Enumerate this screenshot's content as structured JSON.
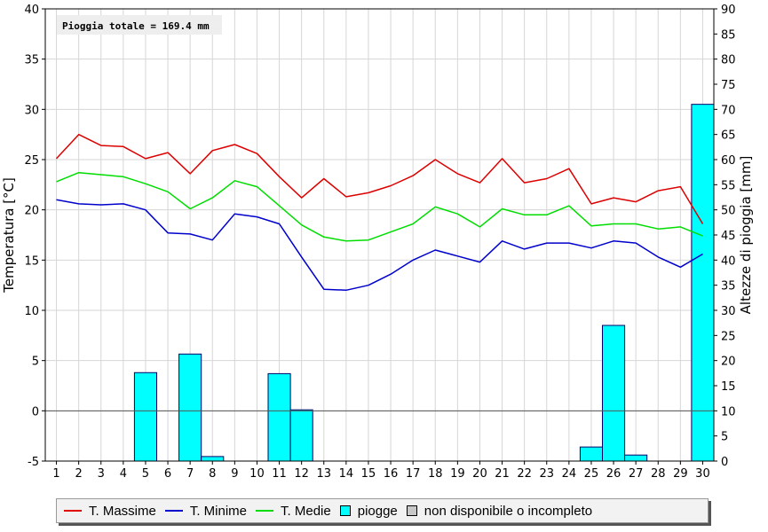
{
  "chart_data": {
    "type": "line",
    "annotation": "Pioggia totale = 169.4 mm",
    "ylabel": "Temperatura [°C]",
    "y2label": "Altezze di pioggia [mm]",
    "ylim": [
      -5,
      40
    ],
    "y2lim": [
      0,
      90
    ],
    "yticks": [
      -5,
      0,
      5,
      10,
      15,
      20,
      25,
      30,
      35,
      40
    ],
    "y2ticks": [
      0,
      5,
      10,
      15,
      20,
      25,
      30,
      35,
      40,
      45,
      50,
      55,
      60,
      65,
      70,
      75,
      80,
      85,
      90
    ],
    "categories": [
      "1",
      "2",
      "3",
      "4",
      "5",
      "6",
      "7",
      "8",
      "9",
      "10",
      "11",
      "12",
      "13",
      "14",
      "15",
      "16",
      "17",
      "18",
      "19",
      "20",
      "21",
      "22",
      "23",
      "24",
      "25",
      "26",
      "27",
      "28",
      "29",
      "30"
    ],
    "grid": true,
    "legend_position": "bottom",
    "series": [
      {
        "name": "T. Massime",
        "color": "#dd0000",
        "axis": "left",
        "kind": "line",
        "values": [
          25.1,
          27.5,
          26.4,
          26.3,
          25.1,
          25.7,
          23.6,
          25.9,
          26.5,
          25.6,
          23.3,
          21.2,
          23.1,
          21.3,
          21.7,
          22.4,
          23.4,
          25.0,
          23.6,
          22.7,
          25.1,
          22.7,
          23.1,
          24.1,
          20.6,
          21.2,
          20.8,
          21.9,
          22.3,
          18.6
        ]
      },
      {
        "name": "T. Minime",
        "color": "#0000cc",
        "axis": "left",
        "kind": "line",
        "values": [
          21.0,
          20.6,
          20.5,
          20.6,
          20.0,
          17.7,
          17.6,
          17.0,
          19.6,
          19.3,
          18.6,
          15.3,
          12.1,
          12.0,
          12.5,
          13.6,
          15.0,
          16.0,
          15.4,
          14.8,
          16.9,
          16.1,
          16.7,
          16.7,
          16.2,
          16.9,
          16.7,
          15.3,
          14.3,
          15.6
        ]
      },
      {
        "name": "T. Medie",
        "color": "#00dd00",
        "axis": "left",
        "kind": "line",
        "values": [
          22.8,
          23.7,
          23.5,
          23.3,
          22.6,
          21.8,
          20.1,
          21.2,
          22.9,
          22.3,
          20.4,
          18.5,
          17.3,
          16.9,
          17.0,
          17.8,
          18.6,
          20.3,
          19.6,
          18.3,
          20.1,
          19.5,
          19.5,
          20.4,
          18.4,
          18.6,
          18.6,
          18.1,
          18.3,
          17.4
        ]
      },
      {
        "name": "piogge",
        "color": "#00ffff",
        "axis": "right",
        "kind": "bar",
        "values": [
          0,
          0,
          0,
          0,
          17.6,
          0,
          21.3,
          0.9,
          0,
          0,
          17.4,
          10.2,
          0,
          0,
          0,
          0,
          0,
          0,
          0,
          0,
          0,
          0,
          0,
          0,
          2.8,
          27.0,
          1.2,
          0,
          0,
          71.0
        ]
      }
    ],
    "legend": [
      {
        "label": "T. Massime",
        "kind": "line",
        "color": "#dd0000"
      },
      {
        "label": "T. Minime",
        "kind": "line",
        "color": "#0000cc"
      },
      {
        "label": "T. Medie",
        "kind": "line",
        "color": "#00dd00"
      },
      {
        "label": "piogge",
        "kind": "box",
        "color": "#00ffff"
      },
      {
        "label": "non disponibile o incompleto",
        "kind": "box",
        "color": "#c8c8c8"
      }
    ]
  }
}
